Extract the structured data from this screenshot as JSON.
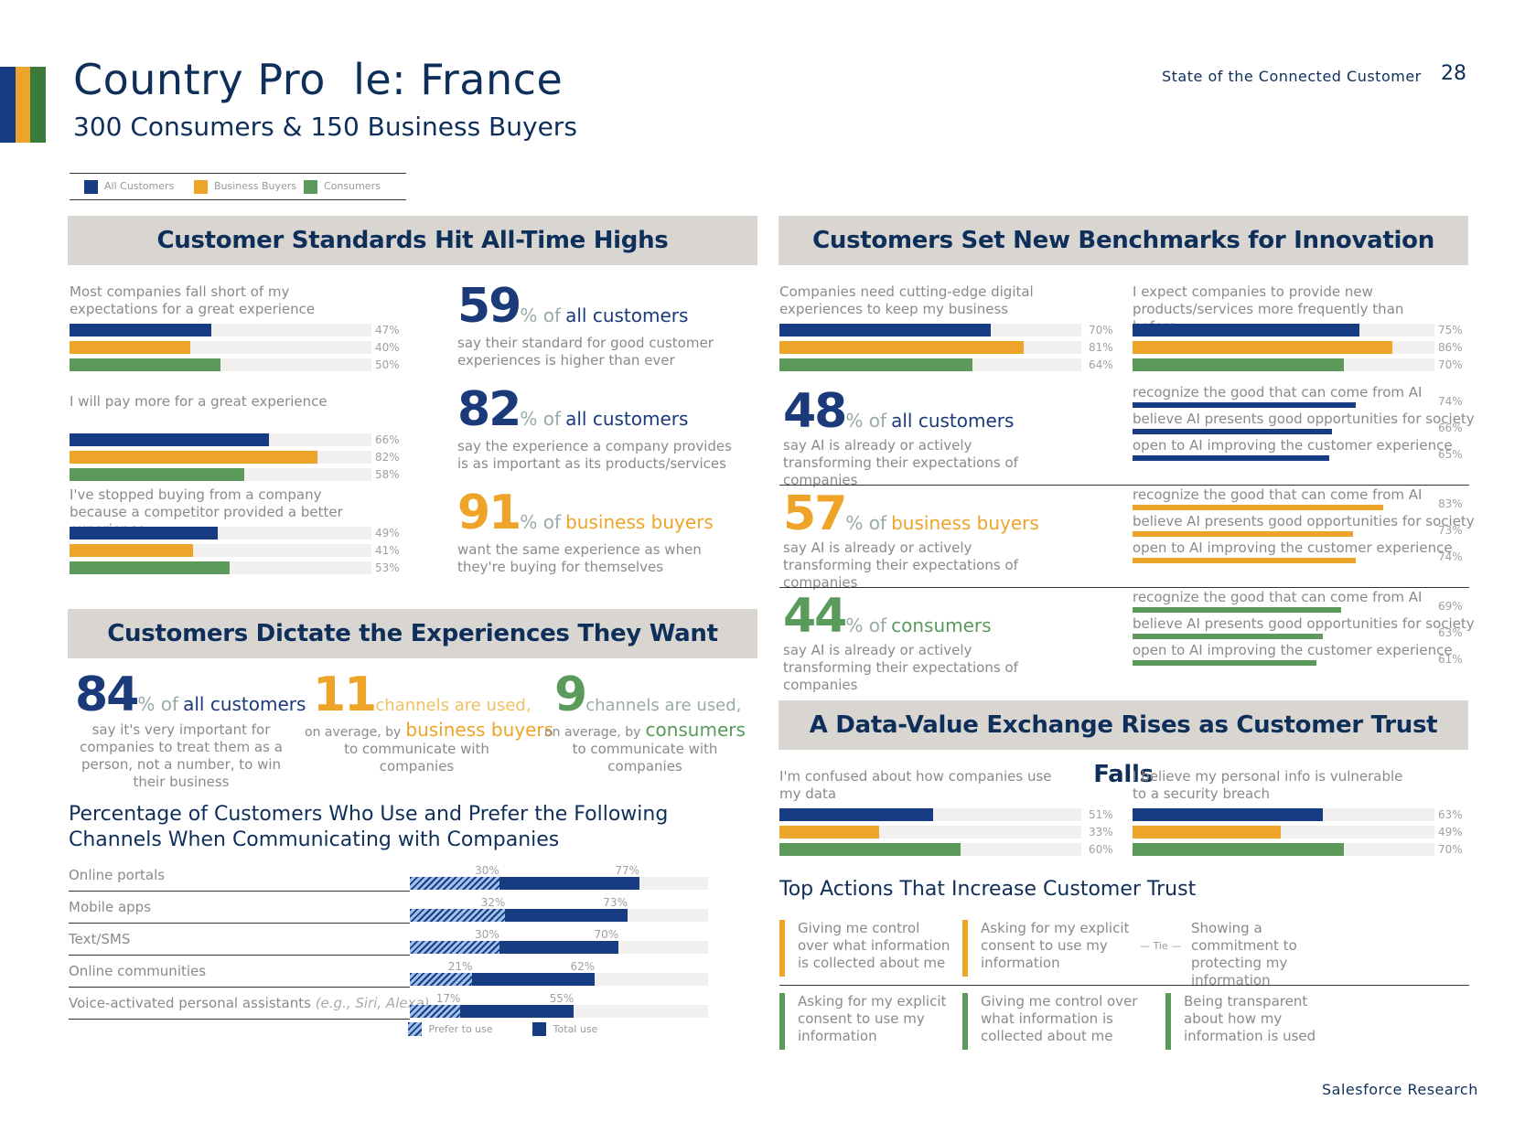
{
  "header": {
    "title": "Country Pro  le: France",
    "subtitle": "300 Consumers & 150 Business Buyers",
    "report_name": "State of the Connected Customer",
    "page_number": "28",
    "footer": "Salesforce Research"
  },
  "colors": {
    "all": "#173c82",
    "business": "#eda428",
    "consumers": "#5c9a5c",
    "navy_text": "#0e2f5a"
  },
  "legend": {
    "all": "All Customers",
    "business": "Business Buyers",
    "consumers": "Consumers"
  },
  "standards": {
    "title": "Customer Standards Hit All-Time Highs",
    "groups": [
      {
        "label": "Most companies fall short of my expectations for a great experience",
        "values": [
          47,
          40,
          50
        ],
        "texts": [
          "47%",
          "40%",
          "50%"
        ]
      },
      {
        "label": "I will pay more for a great experience",
        "values": [
          66,
          82,
          58
        ],
        "texts": [
          "66%",
          "82%",
          "58%"
        ]
      },
      {
        "label": "I've stopped buying from a company because a competitor provided a better experience",
        "values": [
          49,
          41,
          53
        ],
        "texts": [
          "49%",
          "41%",
          "53%"
        ]
      }
    ],
    "stats": [
      {
        "num": "59",
        "suffix": "% of",
        "who": "all customers",
        "desc": "say their standard for good customer experiences is higher than ever"
      },
      {
        "num": "82",
        "suffix": "% of",
        "who": "all customers",
        "desc": "say the experience a company provides is as important as its products/services"
      },
      {
        "num": "91",
        "suffix": "% of",
        "who": "business buyers",
        "desc": "want the same experience as when they're buying for themselves"
      }
    ]
  },
  "dictate": {
    "title": "Customers Dictate the Experiences They Want",
    "stats": [
      {
        "num": "84",
        "suffix": "% of",
        "who": "all customers",
        "desc": "say it's very important for companies to treat them as a person, not a number, to win their business"
      },
      {
        "num": "11",
        "suffix": "channels are used,",
        "pre": "on average, by",
        "who": "business buyers",
        "desc": "to communicate with companies"
      },
      {
        "num": "9",
        "suffix": "channels are used,",
        "pre": "on average, by",
        "who": "consumers",
        "desc": "to communicate with companies"
      }
    ]
  },
  "channels": {
    "title_line1": "Percentage of Customers Who Use and Prefer the Following",
    "title_line2": "Channels When Communicating with Companies",
    "rows": [
      {
        "label": "Online portals",
        "prefer": 30,
        "total": 77,
        "prefer_text": "30%",
        "total_text": "77%"
      },
      {
        "label": "Mobile apps",
        "prefer": 32,
        "total": 73,
        "prefer_text": "32%",
        "total_text": "73%"
      },
      {
        "label": "Text/SMS",
        "prefer": 30,
        "total": 70,
        "prefer_text": "30%",
        "total_text": "70%"
      },
      {
        "label": "Online communities",
        "prefer": 21,
        "total": 62,
        "prefer_text": "21%",
        "total_text": "62%"
      },
      {
        "label": "Voice-activated personal assistants",
        "label_note": "(e.g., Siri, Alexa)",
        "prefer": 17,
        "total": 55,
        "prefer_text": "17%",
        "total_text": "55%"
      }
    ],
    "legend_prefer": "Prefer to use",
    "legend_total": "Total use"
  },
  "innovation": {
    "title": "Customers Set New Benchmarks for Innovation",
    "groups": [
      {
        "label": "Companies need cutting-edge digital experiences to keep my business",
        "values": [
          70,
          81,
          64
        ],
        "texts": [
          "70%",
          "81%",
          "64%"
        ]
      },
      {
        "label": "I expect companies to provide new products/services more frequently than before",
        "values": [
          75,
          86,
          70
        ],
        "texts": [
          "75%",
          "86%",
          "70%"
        ]
      }
    ],
    "ai": [
      {
        "num": "48",
        "suffix": "% of",
        "who": "all customers",
        "desc": "say AI is already or actively transforming their expectations of companies",
        "items": [
          {
            "label": "recognize the good that can come from AI",
            "value": 74,
            "text": "74%"
          },
          {
            "label": "believe AI presents good opportunities for society",
            "value": 66,
            "text": "66%"
          },
          {
            "label": "open to AI improving the customer experience",
            "value": 65,
            "text": "65%"
          }
        ]
      },
      {
        "num": "57",
        "suffix": "% of",
        "who": "business buyers",
        "desc": "say AI is already or actively transforming their expectations of companies",
        "items": [
          {
            "label": "recognize the good that can come from AI",
            "value": 83,
            "text": "83%"
          },
          {
            "label": "believe AI presents good opportunities for society",
            "value": 73,
            "text": "73%"
          },
          {
            "label": "open to AI improving the customer experience",
            "value": 74,
            "text": "74%"
          }
        ]
      },
      {
        "num": "44",
        "suffix": "% of",
        "who": "consumers",
        "desc": "say AI is already or actively transforming their expectations of companies",
        "items": [
          {
            "label": "recognize the good that can come from AI",
            "value": 69,
            "text": "69%"
          },
          {
            "label": "believe AI presents good opportunities for society",
            "value": 63,
            "text": "63%"
          },
          {
            "label": "open to AI improving the customer experience",
            "value": 61,
            "text": "61%"
          }
        ]
      }
    ]
  },
  "trust": {
    "title": "A Data-Value Exchange Rises as Customer Trust Falls",
    "groups": [
      {
        "label": "I'm confused about how companies use my data",
        "values": [
          51,
          33,
          60
        ],
        "texts": [
          "51%",
          "33%",
          "60%"
        ]
      },
      {
        "label": "I believe my personal info is vulnerable to a security breach",
        "values": [
          63,
          49,
          70
        ],
        "texts": [
          "63%",
          "49%",
          "70%"
        ]
      }
    ],
    "actions_title": "Top Actions That Increase Customer Trust",
    "tie": "Tie",
    "business": [
      "Giving me control over what information is collected about me",
      "Asking for my explicit consent to use my information",
      "Showing a commitment to protecting my information"
    ],
    "consumers": [
      "Asking for my explicit consent to use my information",
      "Giving me control over what information is collected about me",
      "Being transparent about how my information is used"
    ]
  }
}
